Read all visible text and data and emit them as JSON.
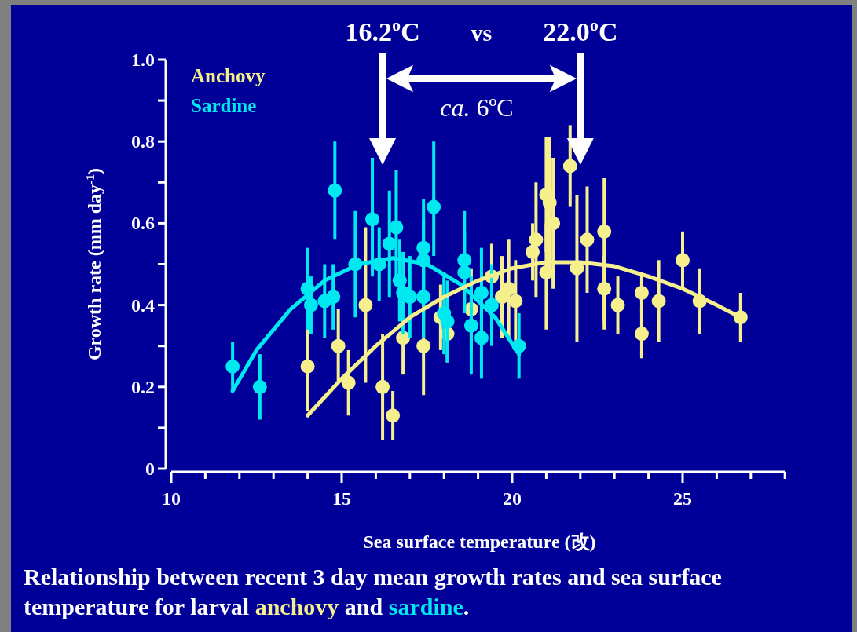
{
  "chart_data": {
    "type": "scatter",
    "title": "Relationship between recent 3 day mean growth rates and sea surface temperature for larval anchovy and sardine.",
    "xlabel": "Sea surface temperature (改)",
    "ylabel": "Growth rate (mm day$^{-1}$)",
    "xlim": [
      10,
      28
    ],
    "ylim": [
      0,
      1
    ],
    "xticks": [
      10,
      {
        "value": 11,
        "label": null
      },
      {
        "value": 12,
        "label": null
      },
      {
        "value": 13,
        "label": null
      },
      {
        "value": 14,
        "label": null
      },
      15,
      {
        "value": 16,
        "label": null
      },
      {
        "value": 17,
        "label": null
      },
      {
        "value": 18,
        "label": null
      },
      {
        "value": 19,
        "label": null
      },
      20,
      {
        "value": 21,
        "label": null
      },
      {
        "value": 22,
        "label": null
      },
      {
        "value": 23,
        "label": null
      },
      {
        "value": 24,
        "label": null
      },
      25,
      {
        "value": 26,
        "label": null
      },
      {
        "value": 27,
        "label": null
      },
      {
        "value": 28,
        "label": null
      }
    ],
    "yticks": [
      {
        "value": 0,
        "label": "0"
      },
      {
        "value": 0.1,
        "label": null
      },
      {
        "value": 0.2,
        "label": "0.2"
      },
      {
        "value": 0.3,
        "label": null
      },
      {
        "value": 0.4,
        "label": "0.4"
      },
      {
        "value": 0.5,
        "label": null
      },
      {
        "value": 0.6,
        "label": "0.6"
      },
      {
        "value": 0.7,
        "label": null
      },
      {
        "value": 0.8,
        "label": "0.8"
      },
      {
        "value": 0.9,
        "label": null
      },
      {
        "value": 1.0,
        "label": "1.0"
      }
    ],
    "grid": false,
    "legend": "top left",
    "marker": "circle",
    "series": [
      {
        "name": "Anchovy",
        "color": "#f5f08c",
        "x": [
          14.0,
          14.9,
          15.2,
          15.7,
          16.2,
          16.5,
          16.8,
          17.4,
          17.9,
          18.1,
          18.8,
          19.4,
          19.7,
          19.9,
          20.1,
          20.6,
          20.7,
          21.0,
          21.1,
          21.2,
          21.0,
          21.7,
          21.9,
          22.2,
          22.7,
          22.7,
          23.1,
          23.8,
          23.8,
          24.3,
          25.0,
          25.5,
          26.7
        ],
        "values": [
          0.25,
          0.3,
          0.21,
          0.4,
          0.2,
          0.13,
          0.32,
          0.3,
          0.37,
          0.33,
          0.39,
          0.47,
          0.42,
          0.44,
          0.41,
          0.53,
          0.56,
          0.67,
          0.65,
          0.6,
          0.48,
          0.74,
          0.49,
          0.56,
          0.58,
          0.44,
          0.4,
          0.43,
          0.33,
          0.41,
          0.51,
          0.41,
          0.37
        ],
        "errors": [
          0.11,
          0.09,
          0.08,
          [
            0.21,
            0.59
          ],
          [
            0.07,
            0.33
          ],
          0.06,
          0.09,
          0.12,
          0.08,
          [
            0.26,
            0.42
          ],
          0.1,
          0.08,
          0.1,
          0.12,
          0.1,
          0.07,
          [
            0.42,
            0.7
          ],
          0.14,
          [
            0.49,
            0.81
          ],
          [
            0.44,
            0.76
          ],
          [
            0.34,
            0.6
          ],
          [
            0.64,
            0.84
          ],
          [
            0.31,
            0.67
          ],
          [
            0.43,
            0.69
          ],
          [
            0.34,
            0.71
          ],
          0.08,
          0.07,
          0.05,
          0.06,
          0.1,
          0.07,
          0.08,
          0.06
        ]
      },
      {
        "name": "Sardine",
        "color": "#00e8f0",
        "x": [
          11.8,
          12.6,
          14.0,
          14.1,
          14.5,
          14.75,
          14.8,
          15.4,
          15.9,
          16.1,
          16.4,
          16.6,
          16.7,
          16.8,
          17.0,
          17.4,
          17.4,
          17.4,
          17.7,
          18.0,
          18.1,
          18.6,
          18.6,
          18.8,
          19.1,
          19.1,
          19.4,
          20.2
        ],
        "values": [
          0.25,
          0.2,
          0.44,
          0.4,
          0.41,
          0.42,
          0.68,
          0.5,
          0.61,
          0.5,
          0.55,
          0.59,
          0.46,
          0.43,
          0.42,
          0.54,
          0.51,
          0.42,
          0.64,
          0.38,
          0.36,
          0.51,
          0.48,
          0.35,
          0.43,
          0.32,
          0.4,
          0.3
        ],
        "errors": [
          0.06,
          0.08,
          0.1,
          0.07,
          0.09,
          0.08,
          0.12,
          0.13,
          [
            0.47,
            0.76
          ],
          0.09,
          0.13,
          0.14,
          0.1,
          0.1,
          0.1,
          0.12,
          0.1,
          0.1,
          [
            0.52,
            0.8
          ],
          0.1,
          0.1,
          0.12,
          0.1,
          0.12,
          0.11,
          0.1,
          0.1,
          0.08
        ]
      },
      {
        "color": "#00e8f0",
        "type": "line",
        "marker": "none",
        "x": [
          11.8,
          12.5,
          13.5,
          14.5,
          15.5,
          16.5,
          17.5,
          18.5,
          19.5,
          20.2
        ],
        "values": [
          0.19,
          0.29,
          0.39,
          0.46,
          0.5,
          0.515,
          0.5,
          0.45,
          0.37,
          0.28
        ]
      },
      {
        "color": "#f5f08c",
        "type": "line",
        "marker": "none",
        "x": [
          14.0,
          15,
          16,
          17,
          18,
          19,
          20,
          21,
          22,
          23,
          24,
          25,
          26,
          26.7
        ],
        "values": [
          0.13,
          0.22,
          0.3,
          0.37,
          0.42,
          0.46,
          0.49,
          0.505,
          0.505,
          0.495,
          0.47,
          0.44,
          0.4,
          0.37
        ]
      }
    ],
    "ref_lines": [
      {
        "axis": "x",
        "value": 16.2,
        "label": "16.2ºC",
        "color": "#ffffff"
      },
      {
        "axis": "x",
        "value": 22.0,
        "label": "22.0ºC",
        "color": "#ffffff"
      }
    ],
    "annotations": [
      "vs",
      "*ca.* 6ºC"
    ]
  }
}
